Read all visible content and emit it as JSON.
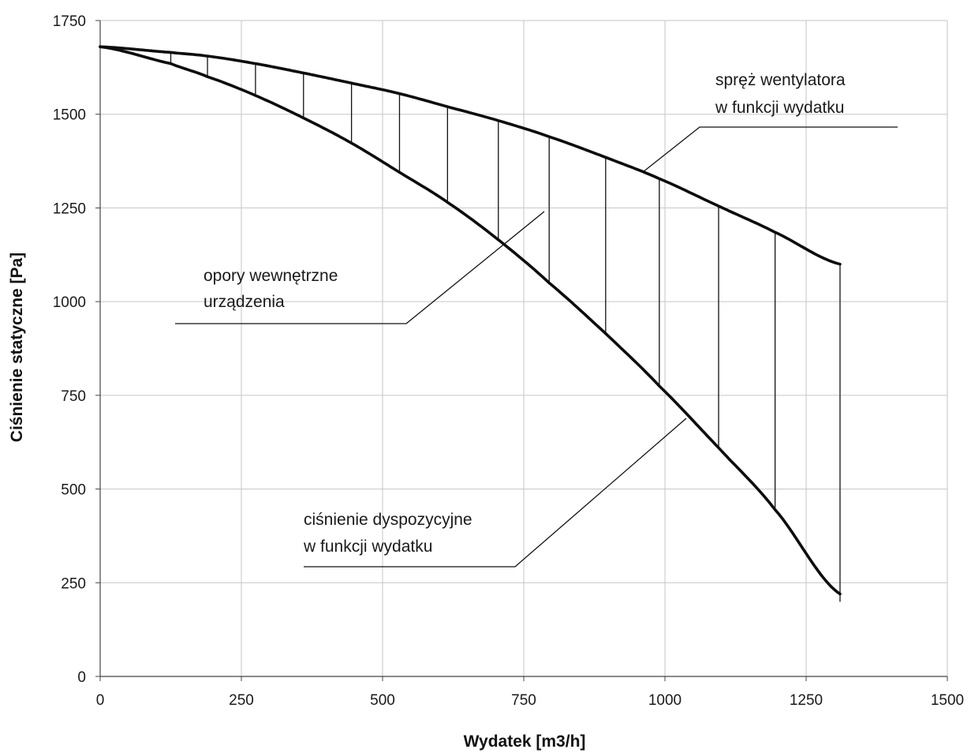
{
  "chart_data": {
    "type": "line",
    "title": "",
    "xlabel": "Wydatek [m3/h]",
    "ylabel": "Ciśnienie statyczne [Pa]",
    "xlim": [
      0,
      1500
    ],
    "ylim": [
      0,
      1750
    ],
    "xticks": [
      "0",
      "250",
      "500",
      "750",
      "1000",
      "1250",
      "1500"
    ],
    "yticks": [
      "0",
      "250",
      "500",
      "750",
      "1000",
      "1250",
      "1500",
      "1750"
    ],
    "grid": true,
    "legend": "none",
    "series": [
      {
        "name": "spręż wentylatora w funkcji wydatku",
        "x": [
          0,
          125,
          190,
          275,
          360,
          445,
          530,
          615,
          705,
          795,
          895,
          990,
          1095,
          1195,
          1310
        ],
        "y": [
          1680,
          1665,
          1655,
          1635,
          1610,
          1583,
          1555,
          1520,
          1483,
          1440,
          1385,
          1328,
          1255,
          1185,
          1100
        ]
      },
      {
        "name": "ciśnienie dyspozycyjne w funkcji wydatku",
        "x": [
          0,
          125,
          190,
          275,
          360,
          445,
          530,
          615,
          705,
          795,
          895,
          990,
          1095,
          1195,
          1310
        ],
        "y": [
          1680,
          1635,
          1600,
          1550,
          1490,
          1423,
          1345,
          1265,
          1165,
          1050,
          915,
          775,
          610,
          445,
          220
        ]
      }
    ],
    "hatch_x": [
      125,
      190,
      275,
      360,
      445,
      530,
      615,
      705,
      795,
      895,
      990,
      1095,
      1195,
      1310
    ],
    "annotations": [
      {
        "id": "fan",
        "lines": [
          "spręż wentylatora",
          "w funkcji wydatku"
        ]
      },
      {
        "id": "internal",
        "lines": [
          "opory wewnętrzne",
          "urządzenia"
        ]
      },
      {
        "id": "available",
        "lines": [
          "ciśnienie dyspozycyjne",
          "w funkcji wydatku"
        ]
      }
    ]
  }
}
